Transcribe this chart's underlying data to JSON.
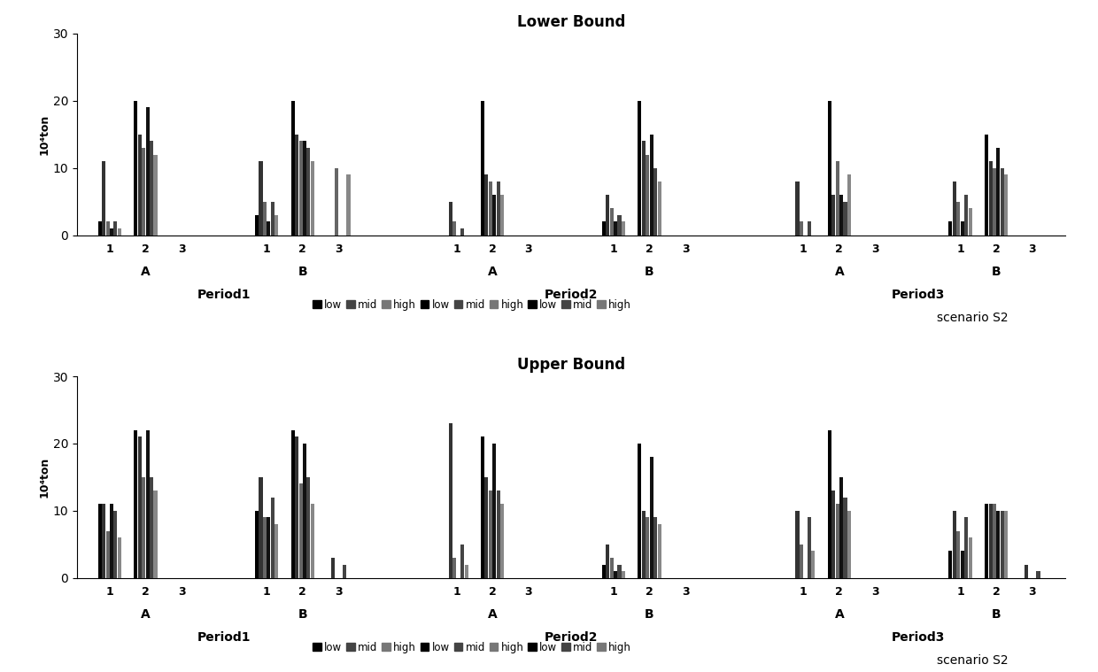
{
  "title_lower": "Lower Bound",
  "title_upper": "Upper Bound",
  "ylabel": "10⁴ton",
  "ylim": [
    0,
    30
  ],
  "yticks": [
    0,
    10,
    20,
    30
  ],
  "scenario_label": "scenario S2",
  "legend_labels": [
    "low",
    "mid",
    "high",
    "low",
    "mid",
    "high",
    "low",
    "mid",
    "high"
  ],
  "legend_colors": [
    "#000000",
    "#444444",
    "#777777",
    "#000000",
    "#444444",
    "#777777",
    "#000000",
    "#444444",
    "#777777"
  ],
  "lower_data": {
    "P1A1": [
      2,
      11,
      2,
      1,
      2,
      1
    ],
    "P1A2": [
      20,
      15,
      13,
      19,
      14,
      12
    ],
    "P1A3": [
      0,
      0,
      0,
      0,
      0,
      0
    ],
    "P1B1": [
      3,
      11,
      5,
      2,
      5,
      3
    ],
    "P1B2": [
      20,
      15,
      14,
      14,
      13,
      11
    ],
    "P1B3": [
      0,
      0,
      10,
      0,
      0,
      9
    ],
    "P2A1": [
      0,
      5,
      2,
      0,
      1,
      0
    ],
    "P2A2": [
      20,
      9,
      8,
      6,
      8,
      6
    ],
    "P2A3": [
      0,
      0,
      0,
      0,
      0,
      0
    ],
    "P2B1": [
      2,
      6,
      4,
      2,
      3,
      2
    ],
    "P2B2": [
      20,
      14,
      12,
      15,
      10,
      8
    ],
    "P2B3": [
      0,
      0,
      0,
      0,
      0,
      0
    ],
    "P3A1": [
      0,
      8,
      2,
      0,
      2,
      0
    ],
    "P3A2": [
      20,
      6,
      11,
      6,
      5,
      9
    ],
    "P3A3": [
      0,
      0,
      0,
      0,
      0,
      0
    ],
    "P3B1": [
      2,
      8,
      5,
      2,
      6,
      4
    ],
    "P3B2": [
      15,
      11,
      10,
      13,
      10,
      9
    ],
    "P3B3": [
      0,
      0,
      0,
      0,
      0,
      0
    ]
  },
  "upper_data": {
    "P1A1": [
      11,
      11,
      7,
      11,
      10,
      6
    ],
    "P1A2": [
      22,
      21,
      15,
      22,
      15,
      13
    ],
    "P1A3": [
      0,
      0,
      0,
      0,
      0,
      0
    ],
    "P1B1": [
      10,
      15,
      9,
      9,
      12,
      8
    ],
    "P1B2": [
      22,
      21,
      14,
      20,
      15,
      11
    ],
    "P1B3": [
      0,
      3,
      0,
      0,
      2,
      0
    ],
    "P2A1": [
      0,
      23,
      3,
      0,
      5,
      2
    ],
    "P2A2": [
      21,
      15,
      13,
      20,
      13,
      11
    ],
    "P2A3": [
      0,
      0,
      0,
      0,
      0,
      0
    ],
    "P2B1": [
      2,
      5,
      3,
      1,
      2,
      1
    ],
    "P2B2": [
      20,
      10,
      9,
      18,
      9,
      8
    ],
    "P2B3": [
      0,
      0,
      0,
      0,
      0,
      0
    ],
    "P3A1": [
      0,
      10,
      5,
      0,
      9,
      4
    ],
    "P3A2": [
      22,
      13,
      11,
      15,
      12,
      10
    ],
    "P3A3": [
      0,
      0,
      0,
      0,
      0,
      0
    ],
    "P3B1": [
      4,
      10,
      7,
      4,
      9,
      6
    ],
    "P3B2": [
      11,
      11,
      11,
      10,
      10,
      10
    ],
    "P3B3": [
      0,
      2,
      0,
      0,
      1,
      0
    ]
  }
}
